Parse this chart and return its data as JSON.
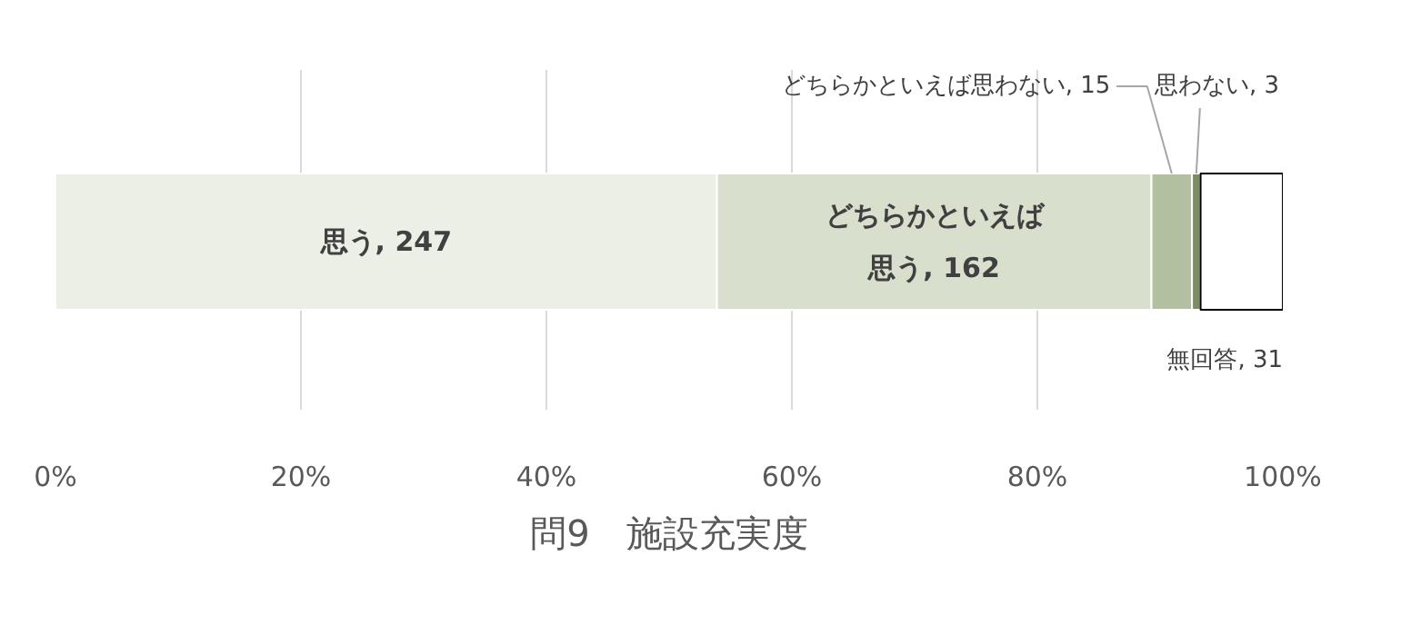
{
  "chart_data": {
    "type": "bar",
    "orientation": "horizontal",
    "stacked": true,
    "title": "問9　施設充実度",
    "categories": [
      null
    ],
    "series": [
      {
        "color": "#ebefe6",
        "values": [
          53.9
        ]
      },
      {
        "color": "#d8dfcc",
        "values": [
          35.4
        ]
      },
      {
        "color": "#b3bfa1",
        "values": [
          3.3
        ]
      },
      {
        "color": "#7d8c66",
        "values": [
          0.7
        ]
      },
      {
        "color": "#ffffff",
        "values": [
          6.7
        ]
      }
    ],
    "annotations": [
      "思う, 247",
      "どちらかといえば思う, 162",
      "どちらかといえば思わない, 15",
      "思わない, 3",
      "無回答, 31"
    ],
    "xlim": [
      0,
      100
    ],
    "xticks": [
      {
        "value": 0,
        "label": "0%"
      },
      {
        "value": 20,
        "label": "20%"
      },
      {
        "value": 40,
        "label": "40%"
      },
      {
        "value": 60,
        "label": "60%"
      },
      {
        "value": 80,
        "label": "80%"
      },
      {
        "value": 100,
        "label": "100%"
      }
    ],
    "grid": "x"
  }
}
